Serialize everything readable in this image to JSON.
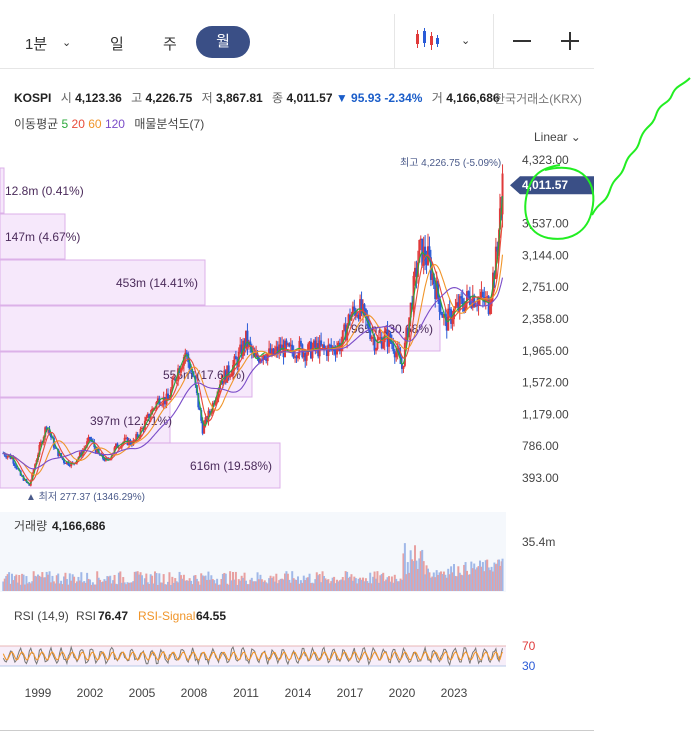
{
  "toolbar": {
    "timeframes": [
      "1분",
      "일",
      "주",
      "월"
    ],
    "active": "월"
  },
  "quote": {
    "symbol": "KOSPI",
    "open_label": "시",
    "open": "4,123.36",
    "high_label": "고",
    "high": "4,226.75",
    "low_label": "저",
    "low": "3,867.81",
    "close_label": "종",
    "close": "4,011.57",
    "change": "▼ 95.93 -2.34%",
    "volume_label": "거",
    "volume": "4,166,686",
    "exchange": "한국거래소(KRX)"
  },
  "ma": {
    "label": "이동평균",
    "periods": [
      "5",
      "20",
      "60",
      "120"
    ],
    "vp_label": "매물분석도(7)"
  },
  "scale_label": "Linear",
  "chart_data": {
    "type": "candlestick",
    "y_ticks": [
      "393.00",
      "786.00",
      "1,179.00",
      "1,572.00",
      "1,965.00",
      "2,358.00",
      "2,751.00",
      "3,144.00",
      "3,537.00",
      "4,323.00"
    ],
    "x_ticks": [
      "1999",
      "2002",
      "2005",
      "2008",
      "2011",
      "2014",
      "2017",
      "2020",
      "2023"
    ],
    "last_price": "4,011.57",
    "high_annotation": "최고 4,226.75 (-5.09%)",
    "low_annotation": "최저 277.37 (1346.29%)",
    "series": [
      {
        "x": [
          1997.0,
          1997.5,
          1998.0,
          1998.5,
          1999.0,
          1999.5,
          2000.0,
          2000.5,
          2001.0,
          2001.5,
          2002.0,
          2002.5,
          2003.0,
          2003.5,
          2004.0,
          2004.5,
          2005.0,
          2005.5,
          2006.0,
          2006.5,
          2007.0,
          2007.5,
          2008.0,
          2008.5,
          2009.0,
          2009.5,
          2010.0,
          2010.5,
          2011.0,
          2011.5,
          2012.0,
          2012.5,
          2013.0,
          2013.5,
          2014.0,
          2014.5,
          2015.0,
          2015.5,
          2016.0,
          2016.5,
          2017.0,
          2017.5,
          2018.0,
          2018.5,
          2019.0,
          2019.5,
          2020.0,
          2020.5,
          2021.0,
          2021.5,
          2022.0,
          2022.5,
          2023.0,
          2023.5,
          2024.0,
          2024.5,
          2025.0,
          2025.5,
          2025.8
        ],
        "y": [
          700,
          640,
          420,
          300,
          700,
          1050,
          750,
          600,
          560,
          700,
          880,
          680,
          600,
          780,
          850,
          830,
          1000,
          1200,
          1380,
          1350,
          1700,
          1950,
          1600,
          1000,
          1250,
          1600,
          1700,
          1850,
          2100,
          1850,
          1950,
          1900,
          2000,
          1950,
          2000,
          1950,
          2000,
          1980,
          2000,
          2050,
          2400,
          2500,
          2300,
          2050,
          2150,
          2050,
          1750,
          2500,
          3200,
          3100,
          2700,
          2300,
          2450,
          2550,
          2650,
          2600,
          2550,
          3200,
          4011.57
        ]
      }
    ],
    "volume": {
      "label": "거래량",
      "value": "4,166,686",
      "axis_max": "35.4m"
    },
    "rsi": {
      "label": "RSI (14,9)",
      "rsi_label": "RSI",
      "rsi_value": "76.47",
      "signal_label": "RSI-Signal",
      "signal_value": "64.55",
      "levels": [
        "70",
        "30"
      ]
    },
    "volume_profile": [
      {
        "label": "12.8m (0.41%)"
      },
      {
        "label": "147m (4.67%)"
      },
      {
        "label": "453m (14.41%)"
      },
      {
        "label": "965m (30.68%)"
      },
      {
        "label": "555m (17.64%)"
      },
      {
        "label": "397m (12.61%)"
      },
      {
        "label": "616m (19.58%)"
      }
    ]
  }
}
